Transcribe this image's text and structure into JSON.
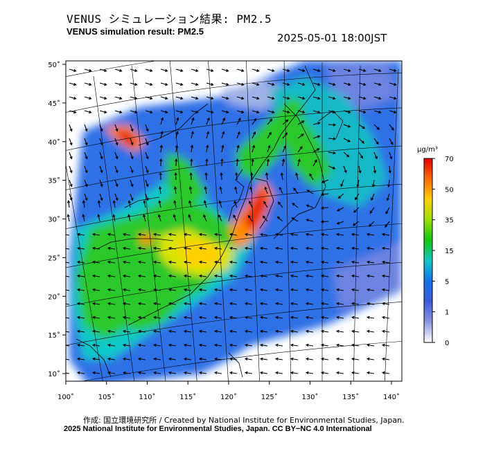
{
  "header": {
    "title_jp": "VENUS シミュレーション結果: PM2.5",
    "title_en": "VENUS simulation result: PM2.5",
    "timestamp": "2025-05-01 18:00JST"
  },
  "map": {
    "variable": "PM2.5",
    "lat_ticks": [
      "50˚",
      "45˚",
      "40˚",
      "35˚",
      "30˚",
      "25˚",
      "20˚",
      "15˚",
      "10˚"
    ],
    "lon_ticks": [
      "100˚",
      "105˚",
      "110˚",
      "115˚",
      "120˚",
      "125˚",
      "130˚",
      "135˚",
      "140˚"
    ],
    "lat_range": [
      10,
      50
    ],
    "lon_range": [
      100,
      140
    ]
  },
  "colorbar": {
    "unit": "μg/m³",
    "ticks": [
      "70",
      "50",
      "35",
      "15",
      "5",
      "1",
      "0"
    ],
    "colors": [
      "#e00000",
      "#ff6a00",
      "#ffd000",
      "#9be000",
      "#12c812",
      "#10c8c8",
      "#1470e8",
      "#3c5cd8",
      "#8c96e0",
      "#ffffff"
    ]
  },
  "footer": {
    "credit_jp": "作成: 国立環境研究所 / Created by National Institute for Environmental Studies, Japan.",
    "credit_en": "2025 National Institute for Environmental Studies, Japan. CC BY−NC 4.0 International"
  }
}
